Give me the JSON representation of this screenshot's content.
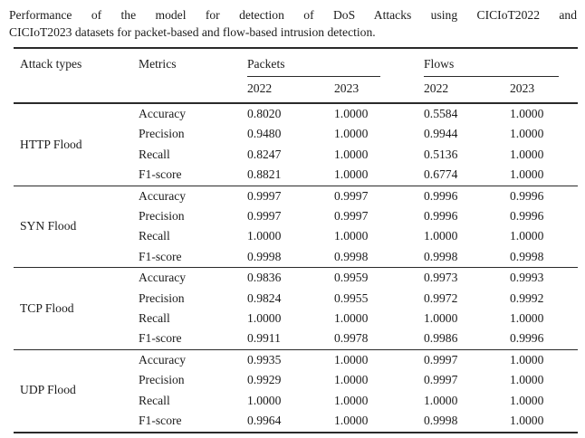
{
  "caption": {
    "line1": "Performance of the model for detection of DoS Attacks using CICIoT2022 and",
    "line2": "CICIoT2023 datasets for packet-based and flow-based intrusion detection."
  },
  "table": {
    "headers": {
      "attack_types": "Attack types",
      "metrics": "Metrics",
      "packets": "Packets",
      "flows": "Flows",
      "packets_years": [
        "2022",
        "2023"
      ],
      "flows_years": [
        "2022",
        "2023"
      ]
    },
    "sections": [
      {
        "attack": "HTTP Flood",
        "rows": [
          {
            "metric": "Accuracy",
            "values": [
              "0.8020",
              "1.0000",
              "0.5584",
              "1.0000"
            ]
          },
          {
            "metric": "Precision",
            "values": [
              "0.9480",
              "1.0000",
              "0.9944",
              "1.0000"
            ]
          },
          {
            "metric": "Recall",
            "values": [
              "0.8247",
              "1.0000",
              "0.5136",
              "1.0000"
            ]
          },
          {
            "metric": "F1-score",
            "values": [
              "0.8821",
              "1.0000",
              "0.6774",
              "1.0000"
            ]
          }
        ]
      },
      {
        "attack": "SYN Flood",
        "rows": [
          {
            "metric": "Accuracy",
            "values": [
              "0.9997",
              "0.9997",
              "0.9996",
              "0.9996"
            ]
          },
          {
            "metric": "Precision",
            "values": [
              "0.9997",
              "0.9997",
              "0.9996",
              "0.9996"
            ]
          },
          {
            "metric": "Recall",
            "values": [
              "1.0000",
              "1.0000",
              "1.0000",
              "1.0000"
            ]
          },
          {
            "metric": "F1-score",
            "values": [
              "0.9998",
              "0.9998",
              "0.9998",
              "0.9998"
            ]
          }
        ]
      },
      {
        "attack": "TCP Flood",
        "rows": [
          {
            "metric": "Accuracy",
            "values": [
              "0.9836",
              "0.9959",
              "0.9973",
              "0.9993"
            ]
          },
          {
            "metric": "Precision",
            "values": [
              "0.9824",
              "0.9955",
              "0.9972",
              "0.9992"
            ]
          },
          {
            "metric": "Recall",
            "values": [
              "1.0000",
              "1.0000",
              "1.0000",
              "1.0000"
            ]
          },
          {
            "metric": "F1-score",
            "values": [
              "0.9911",
              "0.9978",
              "0.9986",
              "0.9996"
            ]
          }
        ]
      },
      {
        "attack": "UDP Flood",
        "rows": [
          {
            "metric": "Accuracy",
            "values": [
              "0.9935",
              "1.0000",
              "0.9997",
              "1.0000"
            ]
          },
          {
            "metric": "Precision",
            "values": [
              "0.9929",
              "1.0000",
              "0.9997",
              "1.0000"
            ]
          },
          {
            "metric": "Recall",
            "values": [
              "1.0000",
              "1.0000",
              "1.0000",
              "1.0000"
            ]
          },
          {
            "metric": "F1-score",
            "values": [
              "0.9964",
              "1.0000",
              "0.9998",
              "1.0000"
            ]
          }
        ]
      }
    ]
  },
  "colors": {
    "background": "#ffffff",
    "text": "#1b1b1b",
    "rule": "#2a2a2a"
  }
}
